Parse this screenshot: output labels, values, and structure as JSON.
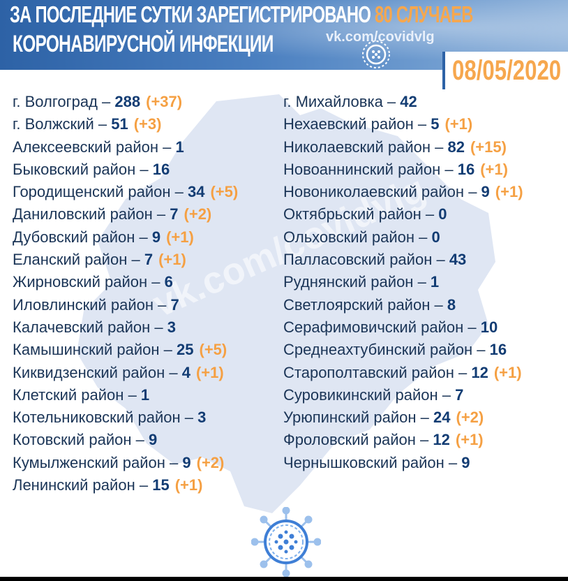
{
  "header": {
    "line1_part1": "ЗА ПОСЛЕДНИЕ СУТКИ ",
    "line1_part2": "ЗАРЕГИСТРИРОВАНО ",
    "line1_part3": "80 СЛУЧАЕВ",
    "line2": "КОРОНАВИРУСНОЙ ИНФЕКЦИИ",
    "site": "vk.com/covidvlg",
    "date": "08/05/2020"
  },
  "watermark": "vk.com/covidvlg",
  "colors": {
    "header_blue": "#2d62a6",
    "accent_orange": "#f6a74e",
    "text_navy": "#1b3557",
    "map_fill": "#dfe6f3"
  },
  "left_column": [
    {
      "name": "г. Волгоград",
      "count": "288",
      "delta": "(+37)"
    },
    {
      "name": "г. Волжский",
      "count": "51",
      "delta": "(+3)"
    },
    {
      "name": "Алексеевский район",
      "count": "1",
      "delta": ""
    },
    {
      "name": "Быковский район",
      "count": "16",
      "delta": ""
    },
    {
      "name": "Городищенский район",
      "count": "34",
      "delta": "(+5)"
    },
    {
      "name": "Даниловский район",
      "count": "7",
      "delta": "(+2)"
    },
    {
      "name": "Дубовский район",
      "count": "9",
      "delta": "(+1)"
    },
    {
      "name": "Еланский район",
      "count": "7",
      "delta": "(+1)"
    },
    {
      "name": "Жирновский район",
      "count": "6",
      "delta": ""
    },
    {
      "name": "Иловлинский район",
      "count": "7",
      "delta": ""
    },
    {
      "name": "Калачевский район",
      "count": "3",
      "delta": ""
    },
    {
      "name": "Камышинский район",
      "count": "25",
      "delta": "(+5)"
    },
    {
      "name": "Киквидзенский район",
      "count": "4",
      "delta": "(+1)"
    },
    {
      "name": "Клетский район",
      "count": "1",
      "delta": ""
    },
    {
      "name": "Котельниковский район",
      "count": "3",
      "delta": ""
    },
    {
      "name": "Котовский район",
      "count": "9",
      "delta": ""
    },
    {
      "name": "Кумылженский район",
      "count": "9",
      "delta": "(+2)"
    },
    {
      "name": "Ленинский район",
      "count": "15",
      "delta": "(+1)"
    }
  ],
  "right_column": [
    {
      "name": "г. Михайловка",
      "count": "42",
      "delta": ""
    },
    {
      "name": "Нехаевский район",
      "count": "5",
      "delta": "(+1)"
    },
    {
      "name": "Николаевский район",
      "count": "82",
      "delta": "(+15)"
    },
    {
      "name": "Новоаннинский район",
      "count": "16",
      "delta": "(+1)"
    },
    {
      "name": "Новониколаевский район",
      "count": "9",
      "delta": "(+1)"
    },
    {
      "name": "Октябрьский район",
      "count": "0",
      "delta": ""
    },
    {
      "name": "Ольховский район",
      "count": "0",
      "delta": ""
    },
    {
      "name": "Палласовский район",
      "count": "43",
      "delta": ""
    },
    {
      "name": "Руднянский район",
      "count": "1",
      "delta": ""
    },
    {
      "name": "Светлоярский район",
      "count": "8",
      "delta": ""
    },
    {
      "name": "Серафимовичский район",
      "count": "10",
      "delta": ""
    },
    {
      "name": "Среднеахтубинский район",
      "count": "16",
      "delta": ""
    },
    {
      "name": "Старополтавский район",
      "count": "12",
      "delta": "(+1)"
    },
    {
      "name": "Суровикинский район",
      "count": "7",
      "delta": ""
    },
    {
      "name": "Урюпинский район",
      "count": "24",
      "delta": "(+2)"
    },
    {
      "name": "Фроловский район",
      "count": "12",
      "delta": "(+1)"
    },
    {
      "name": "Чернышковский район",
      "count": "9",
      "delta": ""
    }
  ],
  "separator": " – "
}
